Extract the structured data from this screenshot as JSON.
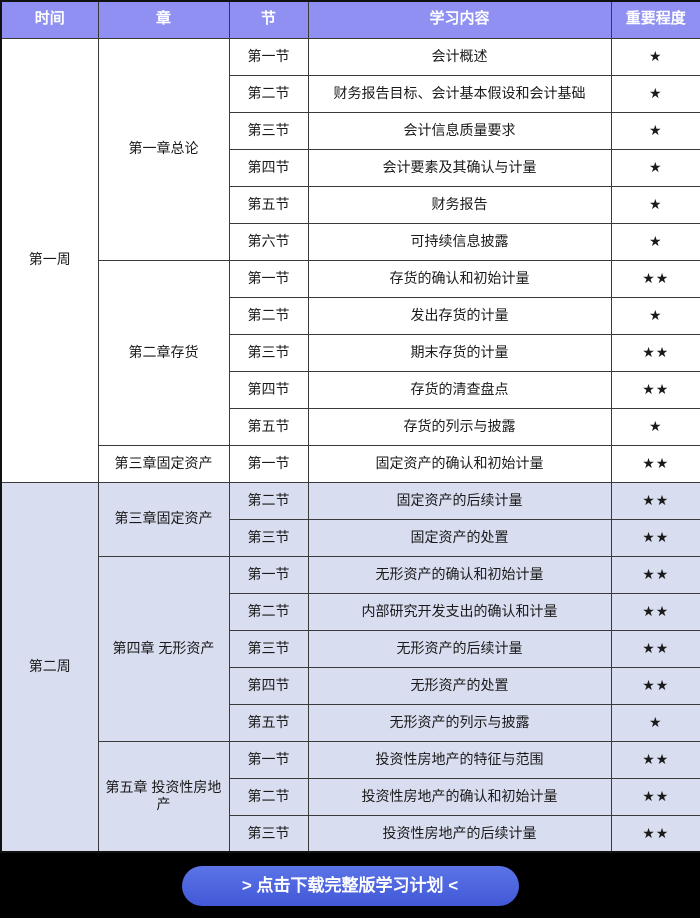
{
  "colors": {
    "header_bg": "#8f90f2",
    "week2_row_bg": "#d9ddf0",
    "week1_row_bg": "#ffffff",
    "grid_line": "#3a3a3a",
    "footer_bg": "#000000",
    "button_blue": "#4a63dd",
    "star_color": "#1a1a1a"
  },
  "header": {
    "columns": [
      "时间",
      "章",
      "节",
      "学习内容",
      "重要程度"
    ]
  },
  "weeks": [
    {
      "label": "第一周",
      "theme": "week-1",
      "chapters": [
        {
          "name": "第一章总论",
          "rows": [
            {
              "section": "第一节",
              "content": "会计概述",
              "importance": "★"
            },
            {
              "section": "第二节",
              "content": "财务报告目标、会计基本假设和会计基础",
              "importance": "★"
            },
            {
              "section": "第三节",
              "content": "会计信息质量要求",
              "importance": "★"
            },
            {
              "section": "第四节",
              "content": "会计要素及其确认与计量",
              "importance": "★"
            },
            {
              "section": "第五节",
              "content": "财务报告",
              "importance": "★"
            },
            {
              "section": "第六节",
              "content": "可持续信息披露",
              "importance": "★"
            }
          ]
        },
        {
          "name": "第二章存货",
          "rows": [
            {
              "section": "第一节",
              "content": "存货的确认和初始计量",
              "importance": "★★"
            },
            {
              "section": "第二节",
              "content": "发出存货的计量",
              "importance": "★"
            },
            {
              "section": "第三节",
              "content": "期末存货的计量",
              "importance": "★★"
            },
            {
              "section": "第四节",
              "content": "存货的清查盘点",
              "importance": "★★"
            },
            {
              "section": "第五节",
              "content": "存货的列示与披露",
              "importance": "★"
            }
          ]
        },
        {
          "name": "第三章固定资产",
          "rows": [
            {
              "section": "第一节",
              "content": "固定资产的确认和初始计量",
              "importance": "★★"
            }
          ]
        }
      ]
    },
    {
      "label": "第二周",
      "theme": "week-2",
      "chapters": [
        {
          "name": "第三章固定资产",
          "rows": [
            {
              "section": "第二节",
              "content": "固定资产的后续计量",
              "importance": "★★"
            },
            {
              "section": "第三节",
              "content": "固定资产的处置",
              "importance": "★★"
            }
          ]
        },
        {
          "name": "第四章 无形资产",
          "rows": [
            {
              "section": "第一节",
              "content": "无形资产的确认和初始计量",
              "importance": "★★"
            },
            {
              "section": "第二节",
              "content": "内部研究开发支出的确认和计量",
              "importance": "★★"
            },
            {
              "section": "第三节",
              "content": "无形资产的后续计量",
              "importance": "★★"
            },
            {
              "section": "第四节",
              "content": "无形资产的处置",
              "importance": "★★"
            },
            {
              "section": "第五节",
              "content": "无形资产的列示与披露",
              "importance": "★"
            }
          ]
        },
        {
          "name": "第五章 投资性房地产",
          "rows": [
            {
              "section": "第一节",
              "content": "投资性房地产的特征与范围",
              "importance": "★★"
            },
            {
              "section": "第二节",
              "content": "投资性房地产的确认和初始计量",
              "importance": "★★"
            },
            {
              "section": "第三节",
              "content": "投资性房地产的后续计量",
              "importance": "★★"
            }
          ]
        }
      ]
    }
  ],
  "footer": {
    "download_button_label": "> 点击下载完整版学习计划 <"
  }
}
